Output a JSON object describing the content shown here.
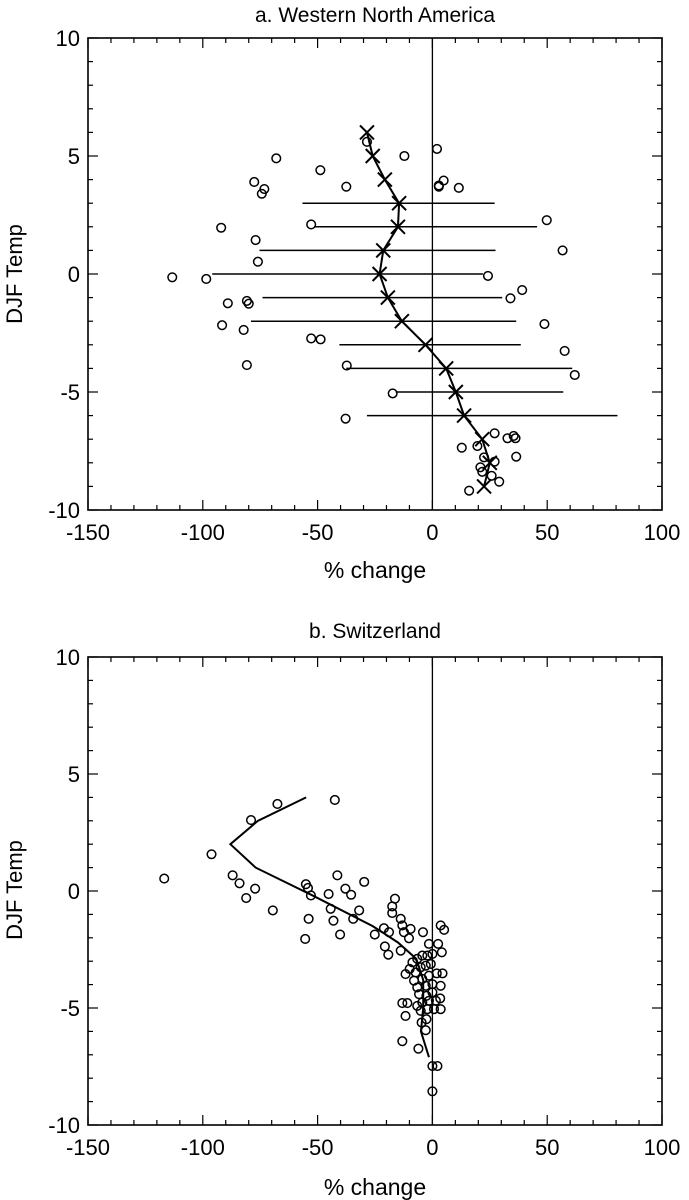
{
  "chart_data": [
    {
      "type": "scatter",
      "title": "a. Western North America",
      "xlabel": "% change",
      "ylabel": "DJF Temp",
      "xlim": [
        -150,
        100
      ],
      "ylim": [
        -10,
        10
      ],
      "xticks": [
        "-150",
        "-100",
        "-50",
        "0",
        "50",
        "100"
      ],
      "yticks": [
        "-10",
        "-5",
        "0",
        "5",
        "10"
      ],
      "grid": false,
      "zero_line": true,
      "points": [
        [
          -28.5,
          5.6
        ],
        [
          2,
          5.3
        ],
        [
          -12.2,
          5.0
        ],
        [
          -68,
          4.9
        ],
        [
          -48.8,
          4.4
        ],
        [
          -77.6,
          3.9
        ],
        [
          -37.5,
          3.7
        ],
        [
          -73.2,
          3.6
        ],
        [
          -74.3,
          3.4
        ],
        [
          2.8,
          3.75
        ],
        [
          4.9,
          3.96
        ],
        [
          2.8,
          3.7
        ],
        [
          11.5,
          3.65
        ],
        [
          -92,
          1.96
        ],
        [
          -52.8,
          2.1
        ],
        [
          49.8,
          2.28
        ],
        [
          -77,
          1.44
        ],
        [
          56.7,
          1.0
        ],
        [
          -76,
          0.52
        ],
        [
          -113.3,
          -0.14
        ],
        [
          -98.5,
          -0.21
        ],
        [
          24.2,
          -0.08
        ],
        [
          39.1,
          -0.68
        ],
        [
          34,
          -1.03
        ],
        [
          -89.1,
          -1.24
        ],
        [
          -80.8,
          -1.14
        ],
        [
          -80,
          -1.26
        ],
        [
          -91.6,
          -2.17
        ],
        [
          -82.2,
          -2.37
        ],
        [
          48.8,
          -2.12
        ],
        [
          -52.8,
          -2.73
        ],
        [
          -48.7,
          -2.77
        ],
        [
          57.6,
          -3.26
        ],
        [
          -80.8,
          -3.86
        ],
        [
          -37.3,
          -3.88
        ],
        [
          62,
          -4.28
        ],
        [
          -17.3,
          -5.06
        ],
        [
          -37.8,
          -6.13
        ],
        [
          27.1,
          -6.75
        ],
        [
          32.7,
          -6.96
        ],
        [
          35.4,
          -6.86
        ],
        [
          36.2,
          -6.96
        ],
        [
          12.8,
          -7.36
        ],
        [
          19.6,
          -7.29
        ],
        [
          36.5,
          -7.74
        ],
        [
          22.5,
          -7.77
        ],
        [
          27.1,
          -7.95
        ],
        [
          20.9,
          -8.19
        ],
        [
          21.7,
          -8.38
        ],
        [
          25.8,
          -8.55
        ],
        [
          29.1,
          -8.8
        ],
        [
          16,
          -9.18
        ]
      ],
      "mean_line": [
        [
          -28.5,
          6
        ],
        [
          -26,
          5
        ],
        [
          -20.7,
          4
        ],
        [
          -14.5,
          3
        ],
        [
          -15,
          2
        ],
        [
          -21.4,
          1
        ],
        [
          -23,
          0
        ],
        [
          -19.4,
          -1
        ],
        [
          -13.3,
          -2
        ],
        [
          -3,
          -3
        ],
        [
          6,
          -4
        ],
        [
          10.2,
          -5
        ],
        [
          13.8,
          -6
        ],
        [
          21.7,
          -7
        ],
        [
          25,
          -8
        ],
        [
          22.5,
          -9
        ]
      ],
      "ranges": [
        {
          "y": 3,
          "x": [
            -56.6,
            27.1
          ]
        },
        {
          "y": 2,
          "x": [
            -51.5,
            45.6
          ]
        },
        {
          "y": 1,
          "x": [
            -75.3,
            27.5
          ]
        },
        {
          "y": 0,
          "x": [
            -95.9,
            22
          ]
        },
        {
          "y": -1,
          "x": [
            -74,
            30.4
          ]
        },
        {
          "y": -2,
          "x": [
            -79,
            36.5
          ]
        },
        {
          "y": -3,
          "x": [
            -40.5,
            38.5
          ]
        },
        {
          "y": -4,
          "x": [
            -37.5,
            60.9
          ]
        },
        {
          "y": -5,
          "x": [
            -16,
            57
          ]
        },
        {
          "y": -6,
          "x": [
            -28.5,
            80.6
          ]
        }
      ]
    },
    {
      "type": "scatter",
      "title": "b. Switzerland",
      "xlabel": "% change",
      "ylabel": "DJF Temp",
      "xlim": [
        -150,
        100
      ],
      "ylim": [
        -10,
        10
      ],
      "xticks": [
        "-150",
        "-100",
        "-50",
        "0",
        "50",
        "100"
      ],
      "yticks": [
        "-10",
        "-5",
        "0",
        "5",
        "10"
      ],
      "grid": false,
      "zero_line": true,
      "points": [
        [
          -116.8,
          0.53
        ],
        [
          -96.2,
          1.57
        ],
        [
          -79,
          3.03
        ],
        [
          -67.5,
          3.72
        ],
        [
          -42.5,
          3.89
        ],
        [
          -87,
          0.67
        ],
        [
          -84,
          0.33
        ],
        [
          -77.2,
          0.1
        ],
        [
          -81.1,
          -0.3
        ],
        [
          -69.5,
          -0.83
        ],
        [
          -55.1,
          0.29
        ],
        [
          -54.2,
          0.13
        ],
        [
          -52.9,
          -0.19
        ],
        [
          -41.4,
          0.67
        ],
        [
          -37.9,
          0.1
        ],
        [
          -35.4,
          -0.16
        ],
        [
          -29.7,
          0.39
        ],
        [
          -45.2,
          -0.13
        ],
        [
          -44.3,
          -0.76
        ],
        [
          -53.9,
          -1.19
        ],
        [
          -55.4,
          -2.05
        ],
        [
          -43.1,
          -1.27
        ],
        [
          -40.2,
          -1.86
        ],
        [
          -34.5,
          -1.19
        ],
        [
          -31.9,
          -0.83
        ],
        [
          -25.1,
          -1.86
        ],
        [
          -21.1,
          -1.59
        ],
        [
          -18.9,
          -1.76
        ],
        [
          -20.7,
          -2.37
        ],
        [
          -19.2,
          -2.72
        ],
        [
          -16.3,
          -0.33
        ],
        [
          -17.5,
          -0.66
        ],
        [
          -17.5,
          -0.94
        ],
        [
          -13.8,
          -1.19
        ],
        [
          -13.1,
          -1.47
        ],
        [
          -12.4,
          -1.76
        ],
        [
          -9.5,
          -1.62
        ],
        [
          -10.2,
          -2.02
        ],
        [
          -13.8,
          -2.55
        ],
        [
          -4.1,
          -1.76
        ],
        [
          3.6,
          -1.47
        ],
        [
          5.1,
          -1.66
        ],
        [
          -1.5,
          -2.26
        ],
        [
          2.5,
          -2.26
        ],
        [
          4.1,
          -2.62
        ],
        [
          -8.7,
          -3.05
        ],
        [
          -6.6,
          -2.9
        ],
        [
          -4.4,
          -2.76
        ],
        [
          -2.2,
          -2.76
        ],
        [
          0,
          -2.69
        ],
        [
          -9.9,
          -3.33
        ],
        [
          -7.3,
          -3.48
        ],
        [
          -5.1,
          -3.26
        ],
        [
          -2.9,
          -3.19
        ],
        [
          -0.7,
          -3.12
        ],
        [
          -11.7,
          -3.55
        ],
        [
          -8,
          -3.83
        ],
        [
          -4.4,
          -3.76
        ],
        [
          -1.5,
          -3.62
        ],
        [
          1.9,
          -3.52
        ],
        [
          4.4,
          -3.52
        ],
        [
          -6.6,
          -4.12
        ],
        [
          -2.9,
          -4.05
        ],
        [
          0,
          -3.98
        ],
        [
          3.6,
          -4.05
        ],
        [
          -5.8,
          -4.41
        ],
        [
          -2.6,
          -4.48
        ],
        [
          0,
          -4.33
        ],
        [
          3.4,
          -4.59
        ],
        [
          -13.1,
          -4.79
        ],
        [
          -10.9,
          -4.79
        ],
        [
          -6.6,
          -4.91
        ],
        [
          -4.4,
          -4.76
        ],
        [
          -1.5,
          -4.69
        ],
        [
          1.5,
          -4.69
        ],
        [
          -11.7,
          -5.34
        ],
        [
          -5.1,
          -5.12
        ],
        [
          -2.2,
          -5.05
        ],
        [
          0.7,
          -5.05
        ],
        [
          3.6,
          -5.05
        ],
        [
          -4.7,
          -5.62
        ],
        [
          -2.6,
          -5.48
        ],
        [
          -2.9,
          -5.95
        ],
        [
          -13.1,
          -6.42
        ],
        [
          -6.1,
          -6.74
        ],
        [
          0,
          -7.48
        ],
        [
          2.2,
          -7.48
        ],
        [
          0,
          -8.56
        ]
      ],
      "mean_line": [
        [
          -55,
          4
        ],
        [
          -76,
          3
        ],
        [
          -88,
          2
        ],
        [
          -77,
          1
        ],
        [
          -52,
          -0.2
        ],
        [
          -26,
          -1.5
        ],
        [
          -15,
          -2.2
        ],
        [
          -7,
          -2.9
        ],
        [
          -4,
          -3.8
        ],
        [
          -4,
          -5
        ],
        [
          -5,
          -6
        ],
        [
          -1.5,
          -7.1
        ]
      ]
    }
  ]
}
